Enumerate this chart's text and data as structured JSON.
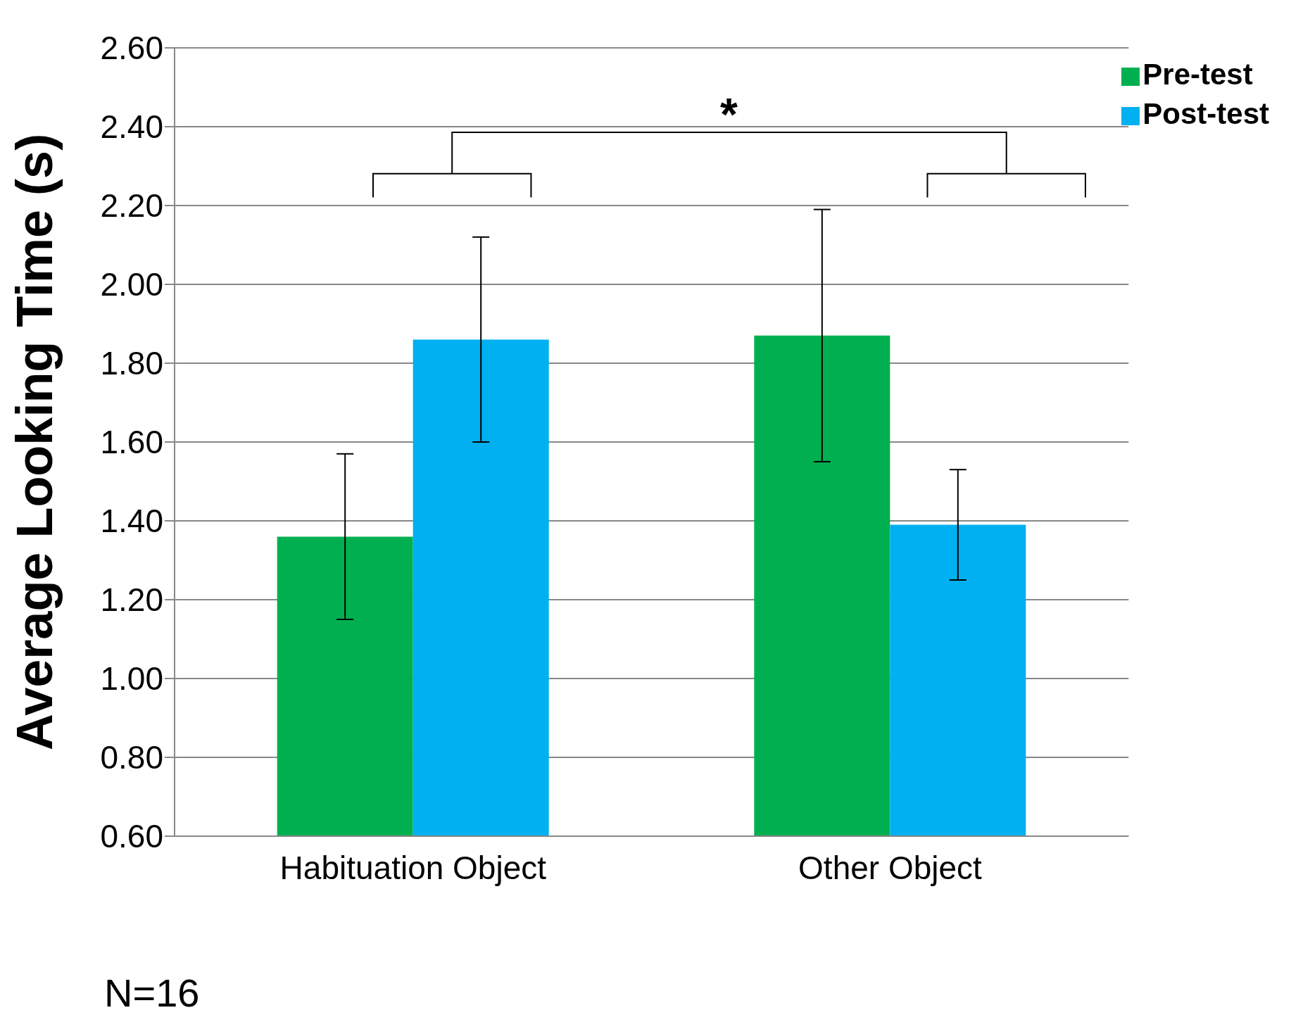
{
  "chart_data": {
    "type": "bar",
    "ylabel": "Average Looking Time (s)",
    "categories": [
      "Habituation Object",
      "Other Object"
    ],
    "series": [
      {
        "name": "Pre-test",
        "color": "#00b050",
        "values": [
          1.36,
          1.87
        ],
        "errors": [
          [
            1.15,
            1.57
          ],
          [
            1.55,
            2.19
          ]
        ]
      },
      {
        "name": "Post-test",
        "color": "#00b0f0",
        "values": [
          1.86,
          1.39
        ],
        "errors": [
          [
            1.6,
            2.12
          ],
          [
            1.25,
            1.53
          ]
        ]
      }
    ],
    "ylim": [
      0.6,
      2.6
    ],
    "yticks": [
      {
        "value": 0.6,
        "label": "0.60"
      },
      {
        "value": 0.8,
        "label": "0.80"
      },
      {
        "value": 1.0,
        "label": "1.00"
      },
      {
        "value": 1.2,
        "label": "1.20"
      },
      {
        "value": 1.4,
        "label": "1.40"
      },
      {
        "value": 1.6,
        "label": "1.60"
      },
      {
        "value": 1.8,
        "label": "1.80"
      },
      {
        "value": 2.0,
        "label": "2.00"
      },
      {
        "value": 2.2,
        "label": "2.20"
      },
      {
        "value": 2.4,
        "label": "2.40"
      },
      {
        "value": 2.6,
        "label": "2.60"
      }
    ],
    "grid": "y",
    "legend": "top right",
    "annotations": [
      "*",
      "N=16"
    ]
  }
}
